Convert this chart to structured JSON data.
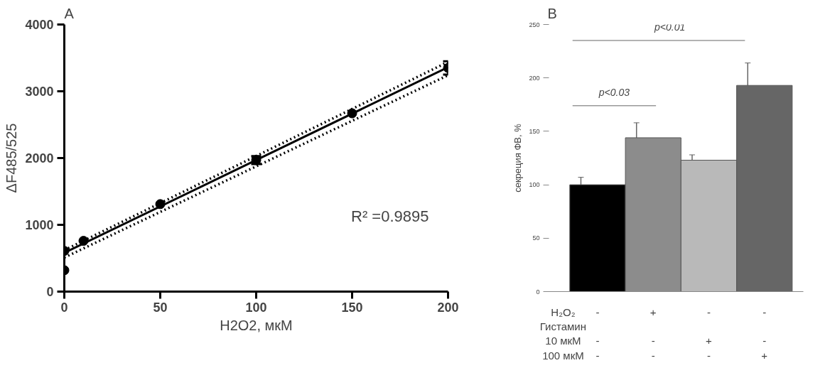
{
  "chart_data": [
    {
      "type": "scatter",
      "title": "A",
      "xlabel": "H2O2, мкМ",
      "ylabel": "ΔF485/525",
      "xlim": [
        0,
        200
      ],
      "ylim": [
        0,
        4000
      ],
      "xticks": [
        0,
        50,
        100,
        150,
        200
      ],
      "yticks": [
        0,
        1000,
        2000,
        3000,
        4000
      ],
      "grid": false,
      "marker": "circle",
      "annotations": [
        "R² =0.9895"
      ],
      "series": [
        {
          "type": "scatter",
          "color": "#000000",
          "x": [
            0,
            0,
            10,
            50,
            100,
            150,
            200
          ],
          "values": [
            320,
            610,
            760,
            1310,
            1970,
            2670,
            3350
          ],
          "errors": [
            null,
            null,
            null,
            null,
            60,
            null,
            100
          ]
        },
        {
          "type": "line",
          "color": "#000000",
          "line_style": "solid",
          "marker": "none",
          "x": [
            0,
            200
          ],
          "values": [
            580,
            3360
          ]
        },
        {
          "type": "line",
          "color": "#000000",
          "line_style": "dotted",
          "marker": "none",
          "x": [
            0,
            200
          ],
          "values": [
            620,
            3440
          ]
        },
        {
          "type": "line",
          "color": "#000000",
          "line_style": "dotted",
          "marker": "none",
          "x": [
            0,
            200
          ],
          "values": [
            510,
            3240
          ]
        }
      ]
    },
    {
      "type": "bar",
      "title": "B",
      "ylabel": "секреция ФВ, %",
      "ylim": [
        0,
        250
      ],
      "yticks": [
        0,
        50,
        100,
        150,
        200,
        250
      ],
      "grid": false,
      "categories": [
        "-\n\n-\n-",
        "+\n\n-\n-",
        "-\n\n+\n-",
        "-\n\n-\n+"
      ],
      "values": [
        100,
        144,
        123,
        193
      ],
      "errors": [
        7,
        14,
        5,
        21
      ],
      "colors": [
        "#000000",
        "#8c8c8c",
        "#b9b9b9",
        "#666666"
      ],
      "annotations": [
        "p<0.01",
        "p<0.03",
        "H₂O₂",
        "Гистамин",
        "10 мкМ",
        "100 мкМ"
      ]
    }
  ]
}
